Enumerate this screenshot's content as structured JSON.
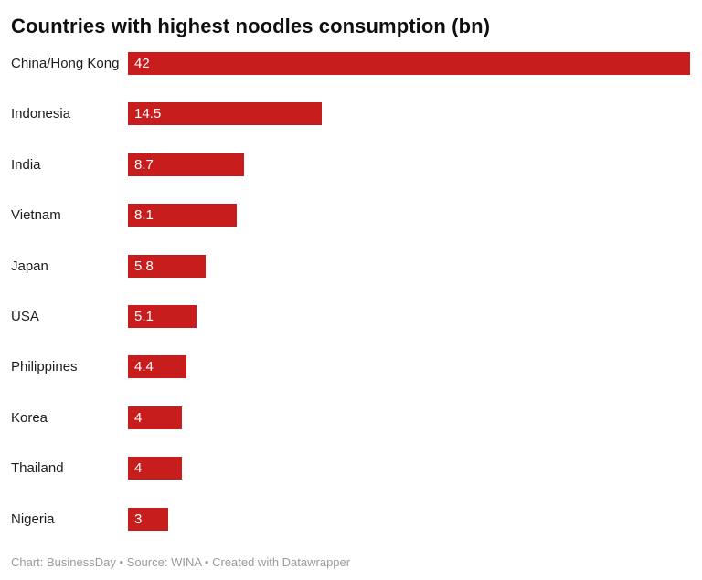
{
  "title": "Countries with highest noodles consumption (bn)",
  "footer": {
    "text": "Chart: BusinessDay • Source: WINA • Created with Datawrapper"
  },
  "colors": {
    "bar": "#c71e1d",
    "value_text": "#ffffff",
    "category_text": "#1d1d1d",
    "title_text": "#0f0f0f",
    "footer_text": "#9b9b9b",
    "background": "#ffffff"
  },
  "chart_data": {
    "type": "bar",
    "orientation": "horizontal",
    "title": "Countries with highest noodles consumption (bn)",
    "categories": [
      "China/Hong Kong",
      "Indonesia",
      "India",
      "Vietnam",
      "Japan",
      "USA",
      "Philippines",
      "Korea",
      "Thailand",
      "Nigeria"
    ],
    "values": [
      42,
      14.5,
      8.7,
      8.1,
      5.8,
      5.1,
      4.4,
      4,
      4,
      3
    ],
    "value_labels": [
      "42",
      "14.5",
      "8.7",
      "8.1",
      "5.8",
      "5.1",
      "4.4",
      "4",
      "4",
      "3"
    ],
    "xlabel": "",
    "ylabel": "",
    "xlim": [
      0,
      42
    ],
    "grid": false,
    "legend": false,
    "value_label_position": "inside-start"
  }
}
